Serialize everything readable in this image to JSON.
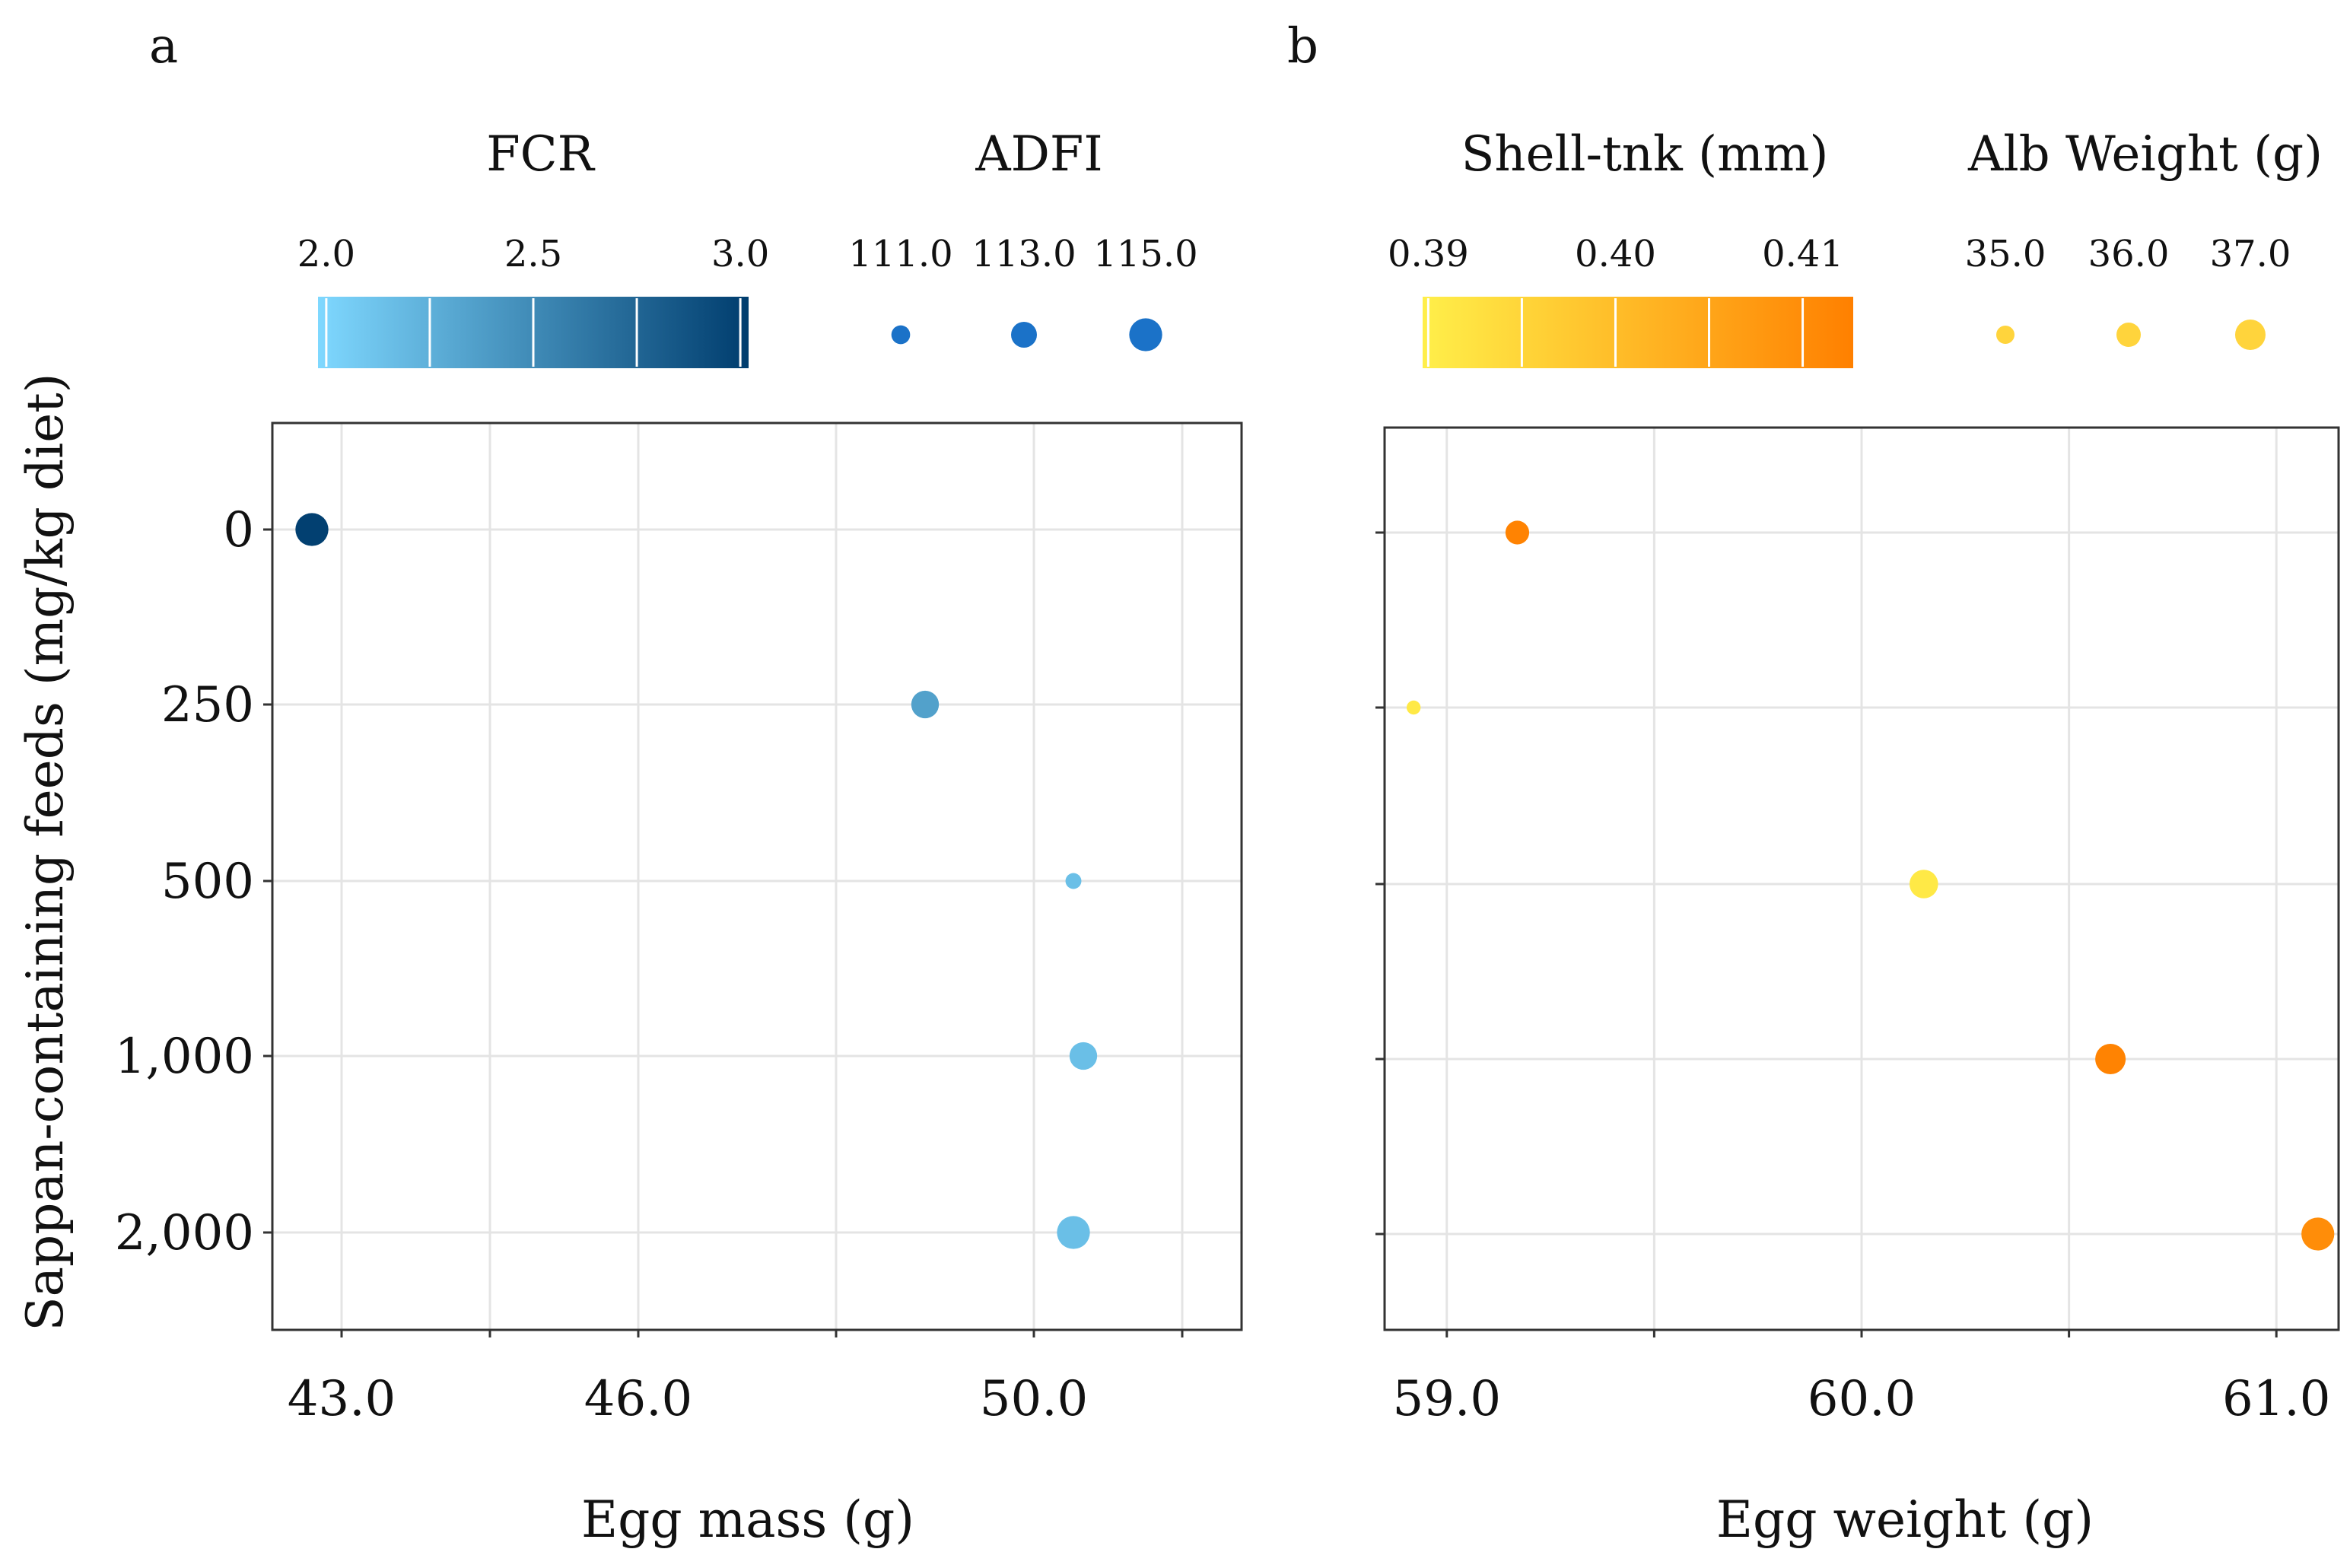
{
  "figure": {
    "background": "#ffffff"
  },
  "chart_data": [
    {
      "panel_label": "a",
      "type": "scatter",
      "xlabel": "Egg mass (g)",
      "ylabel": "Sappan-containing feeds (mg/kg diet)",
      "x_ticks": [
        "43.0",
        "46.0",
        "50.0"
      ],
      "x_tick_values": [
        43.0,
        46.0,
        50.0
      ],
      "xlim": [
        42.3,
        52.1
      ],
      "y_categories": [
        "0",
        "250",
        "500",
        "1,000",
        "2,000"
      ],
      "grid": true,
      "color_legend": {
        "title": "FCR",
        "ticks": [
          "2.0",
          "2.5",
          "3.0"
        ],
        "tick_values": [
          2.0,
          2.5,
          3.0
        ],
        "range": [
          1.98,
          3.02
        ],
        "colors": [
          "#7fd8ff",
          "#003d6e"
        ]
      },
      "size_legend": {
        "title": "ADFI",
        "ticks": [
          "111.0",
          "113.0",
          "115.0"
        ],
        "tick_values": [
          111.0,
          113.0,
          115.0
        ],
        "range": [
          110.0,
          116.0
        ],
        "color": "#1b72c8"
      },
      "points": [
        {
          "y": "0",
          "x": 42.7,
          "color_value": 3.0,
          "size_value": 115.0
        },
        {
          "y": "250",
          "x": 48.9,
          "color_value": 2.35,
          "size_value": 113.5
        },
        {
          "y": "500",
          "x": 50.4,
          "color_value": 2.15,
          "size_value": 110.2
        },
        {
          "y": "1,000",
          "x": 50.5,
          "color_value": 2.15,
          "size_value": 113.5
        },
        {
          "y": "2,000",
          "x": 50.4,
          "color_value": 2.15,
          "size_value": 115.0
        }
      ]
    },
    {
      "panel_label": "b",
      "type": "scatter",
      "xlabel": "Egg weight (g)",
      "ylabel": "",
      "x_ticks": [
        "59.0",
        "60.0",
        "61.0"
      ],
      "x_tick_values": [
        59.0,
        60.0,
        61.0
      ],
      "xlim": [
        58.85,
        61.15
      ],
      "y_categories": [
        "0",
        "250",
        "500",
        "1,000",
        "2,000"
      ],
      "grid": true,
      "color_legend": {
        "title": "Shell-tnk (mm)",
        "ticks": [
          "0.39",
          "0.40",
          "0.41"
        ],
        "tick_values": [
          0.39,
          0.4,
          0.41
        ],
        "range": [
          0.3897,
          0.4127
        ],
        "colors": [
          "#ffef4a",
          "#ff8000"
        ]
      },
      "size_legend": {
        "title": "Alb Weight (g)",
        "ticks": [
          "35.0",
          "36.0",
          "37.0"
        ],
        "tick_values": [
          35.0,
          36.0,
          37.0
        ],
        "range": [
          34.0,
          38.0
        ],
        "color": "#ffd43c"
      },
      "points": [
        {
          "y": "0",
          "x": 59.17,
          "color_value": 0.412,
          "size_value": 35.9
        },
        {
          "y": "250",
          "x": 58.92,
          "color_value": 0.391,
          "size_value": 34.3
        },
        {
          "y": "500",
          "x": 60.15,
          "color_value": 0.391,
          "size_value": 36.7
        },
        {
          "y": "1,000",
          "x": 60.6,
          "color_value": 0.412,
          "size_value": 37.0
        },
        {
          "y": "2,000",
          "x": 61.1,
          "color_value": 0.41,
          "size_value": 37.4
        }
      ]
    }
  ]
}
